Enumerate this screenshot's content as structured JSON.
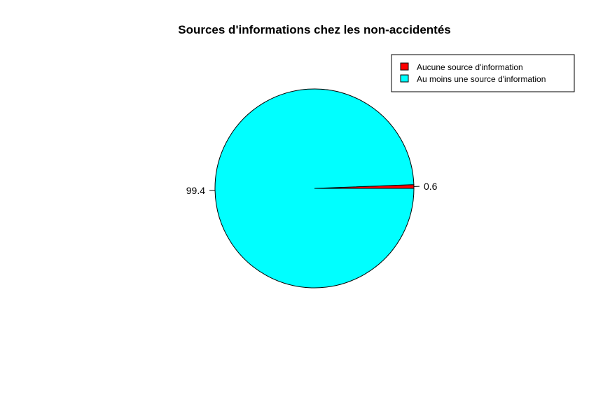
{
  "chart_data": {
    "type": "pie",
    "title": "Sources d'informations chez les non-accidentés",
    "slices": [
      {
        "name": "Aucune source d'information",
        "value": 0.6,
        "label": "0.6",
        "color": "#ff0000"
      },
      {
        "name": "Au moins une source d'information",
        "value": 99.4,
        "label": "99.4",
        "color": "#00ffff"
      }
    ],
    "legend": {
      "position": "top-right",
      "entries": [
        "Aucune source d'information",
        "Au moins une source d'information"
      ]
    },
    "start_angle_deg": 0,
    "direction": "counterclockwise"
  }
}
